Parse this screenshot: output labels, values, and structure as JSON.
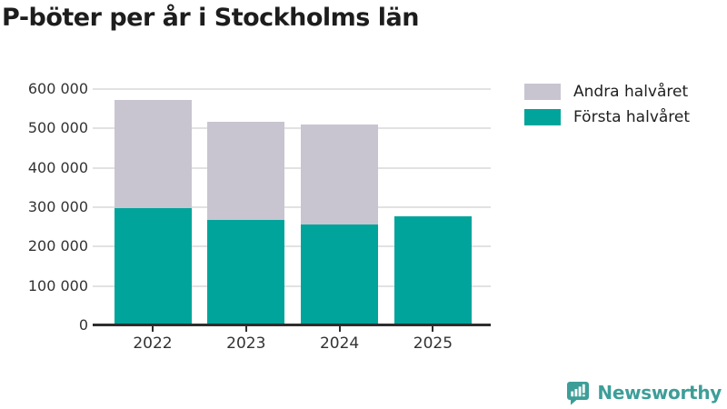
{
  "title": "P-böter per år i Stockholms län",
  "legend": {
    "items": [
      {
        "label": "Andra halvåret",
        "color": "#c8c5d0"
      },
      {
        "label": "Första halvåret",
        "color": "#00a49b"
      }
    ]
  },
  "chart_data": {
    "type": "bar",
    "stacked": true,
    "title": "P-böter per år i Stockholms län",
    "categories": [
      "2022",
      "2023",
      "2024",
      "2025"
    ],
    "series": [
      {
        "name": "Första halvåret",
        "color": "#00a49b",
        "values": [
          298000,
          267000,
          256000,
          278000
        ]
      },
      {
        "name": "Andra halvåret",
        "color": "#c8c5d0",
        "values": [
          275000,
          249000,
          254000,
          0
        ]
      }
    ],
    "xlabel": "",
    "ylabel": "",
    "ylim": [
      0,
      600000
    ],
    "ytick_interval": 100000,
    "ytick_labels": [
      "0",
      "100 000",
      "200 000",
      "300 000",
      "400 000",
      "500 000",
      "600 000"
    ],
    "grid": true,
    "legend_position": "top-right"
  },
  "branding": {
    "logo_text": "Newsworthy",
    "logo_color": "#3d9e98",
    "logo_icon": "newsworthy-speech-bubble-bar-chart-icon"
  },
  "colors": {
    "background": "#ffffff",
    "title_text": "#1d1d1d",
    "axis_text": "#333333",
    "gridline": "#e2e2e2",
    "axis_line": "#2e2e2e"
  }
}
